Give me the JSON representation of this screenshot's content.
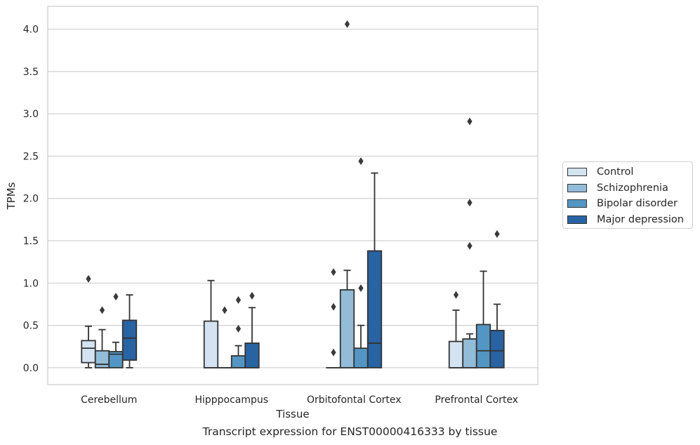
{
  "caption": "Transcript expression for ENST00000416333 by tissue",
  "chart_data": {
    "type": "box",
    "title": "",
    "xlabel": "Tissue",
    "ylabel": "TPMs",
    "ylim": [
      -0.2,
      4.27
    ],
    "yticks": [
      "0.0",
      "0.5",
      "1.0",
      "1.5",
      "2.0",
      "2.5",
      "3.0",
      "3.5",
      "4.0"
    ],
    "grid": "horizontal",
    "legend_position": "right",
    "categories": [
      "Cerebellum",
      "Hipppocampus",
      "Orbitofontal Cortex",
      "Prefrontal Cortex"
    ],
    "series": [
      {
        "name": "Control",
        "color": "#d4e3f1",
        "boxes": [
          {
            "q1": 0.06,
            "median": 0.23,
            "q3": 0.32,
            "whisker_low": 0.0,
            "whisker_high": 0.49,
            "outliers": [
              1.05
            ]
          },
          {
            "q1": 0.0,
            "median": 0.0,
            "q3": 0.55,
            "whisker_low": 0.0,
            "whisker_high": 1.03,
            "outliers": []
          },
          {
            "q1": 0.0,
            "median": 0.0,
            "q3": 0.0,
            "whisker_low": 0.0,
            "whisker_high": 0.0,
            "outliers": [
              0.18,
              0.72,
              1.13
            ]
          },
          {
            "q1": 0.0,
            "median": 0.0,
            "q3": 0.31,
            "whisker_low": 0.0,
            "whisker_high": 0.68,
            "outliers": [
              0.86
            ]
          }
        ]
      },
      {
        "name": "Schizophrenia",
        "color": "#92bcd7",
        "boxes": [
          {
            "q1": 0.0,
            "median": 0.04,
            "q3": 0.2,
            "whisker_low": 0.0,
            "whisker_high": 0.45,
            "outliers": [
              0.68
            ]
          },
          {
            "q1": 0.0,
            "median": 0.0,
            "q3": 0.0,
            "whisker_low": 0.0,
            "whisker_high": 0.0,
            "outliers": [
              0.68
            ]
          },
          {
            "q1": 0.0,
            "median": 0.0,
            "q3": 0.92,
            "whisker_low": 0.0,
            "whisker_high": 1.15,
            "outliers": [
              4.06
            ]
          },
          {
            "q1": 0.0,
            "median": 0.0,
            "q3": 0.34,
            "whisker_low": 0.0,
            "whisker_high": 0.4,
            "outliers": [
              1.44,
              1.95,
              2.91
            ]
          }
        ]
      },
      {
        "name": "Bipolar disorder",
        "color": "#5496c3",
        "boxes": [
          {
            "q1": 0.0,
            "median": 0.16,
            "q3": 0.19,
            "whisker_low": 0.0,
            "whisker_high": 0.3,
            "outliers": [
              0.84
            ]
          },
          {
            "q1": 0.0,
            "median": 0.0,
            "q3": 0.14,
            "whisker_low": 0.0,
            "whisker_high": 0.26,
            "outliers": [
              0.46,
              0.8
            ]
          },
          {
            "q1": 0.0,
            "median": 0.0,
            "q3": 0.23,
            "whisker_low": 0.0,
            "whisker_high": 0.5,
            "outliers": [
              0.94,
              2.44
            ]
          },
          {
            "q1": 0.0,
            "median": 0.2,
            "q3": 0.51,
            "whisker_low": 0.0,
            "whisker_high": 1.14,
            "outliers": []
          }
        ]
      },
      {
        "name": "Major depression",
        "color": "#2863a3",
        "boxes": [
          {
            "q1": 0.09,
            "median": 0.35,
            "q3": 0.56,
            "whisker_low": 0.0,
            "whisker_high": 0.86,
            "outliers": []
          },
          {
            "q1": 0.0,
            "median": 0.0,
            "q3": 0.29,
            "whisker_low": 0.0,
            "whisker_high": 0.71,
            "outliers": [
              0.85
            ]
          },
          {
            "q1": 0.0,
            "median": 0.29,
            "q3": 1.38,
            "whisker_low": 0.0,
            "whisker_high": 2.3,
            "outliers": []
          },
          {
            "q1": 0.0,
            "median": 0.2,
            "q3": 0.44,
            "whisker_low": 0.0,
            "whisker_high": 0.75,
            "outliers": [
              1.58
            ]
          }
        ]
      }
    ]
  }
}
